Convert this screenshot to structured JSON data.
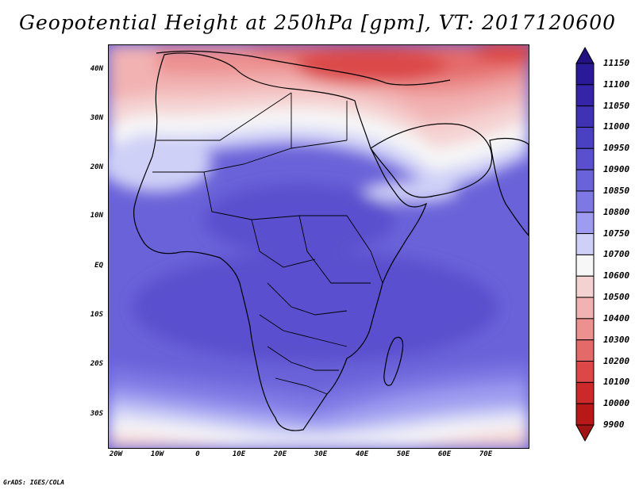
{
  "title": "Geopotential Height at 250hPa [gpm], VT: 2017120600",
  "credit": "GrADS: IGES/COLA",
  "map": {
    "projection": "latlon",
    "lon_range": [
      -22,
      80
    ],
    "lat_range": [
      -37,
      45
    ],
    "lat_ticks": [
      "40N",
      "30N",
      "20N",
      "10N",
      "EQ",
      "10S",
      "20S",
      "30S"
    ],
    "lon_ticks": [
      "20W",
      "10W",
      "0",
      "10E",
      "20E",
      "30E",
      "40E",
      "50E",
      "60E",
      "70E"
    ],
    "features": [
      "shaded-contours",
      "coastlines",
      "country-borders"
    ]
  },
  "colorbar": {
    "levels": [
      "11150",
      "11100",
      "11050",
      "11000",
      "10950",
      "10900",
      "10850",
      "10800",
      "10750",
      "10700",
      "10600",
      "10500",
      "10400",
      "10300",
      "10200",
      "10100",
      "10000",
      "9900"
    ],
    "colors": [
      "#2a1a99",
      "#3523a8",
      "#3f32b5",
      "#4a40c2",
      "#5a4fce",
      "#6a62d8",
      "#7d78e4",
      "#9e9cf0",
      "#cfd0f7",
      "#f7f7f7",
      "#f5d2d2",
      "#f2b2b2",
      "#ec9090",
      "#e46a6a",
      "#dc4848",
      "#cc2a2a",
      "#b81818"
    ],
    "top_arrow_color": "#241180",
    "bottom_arrow_color": "#a01414"
  }
}
